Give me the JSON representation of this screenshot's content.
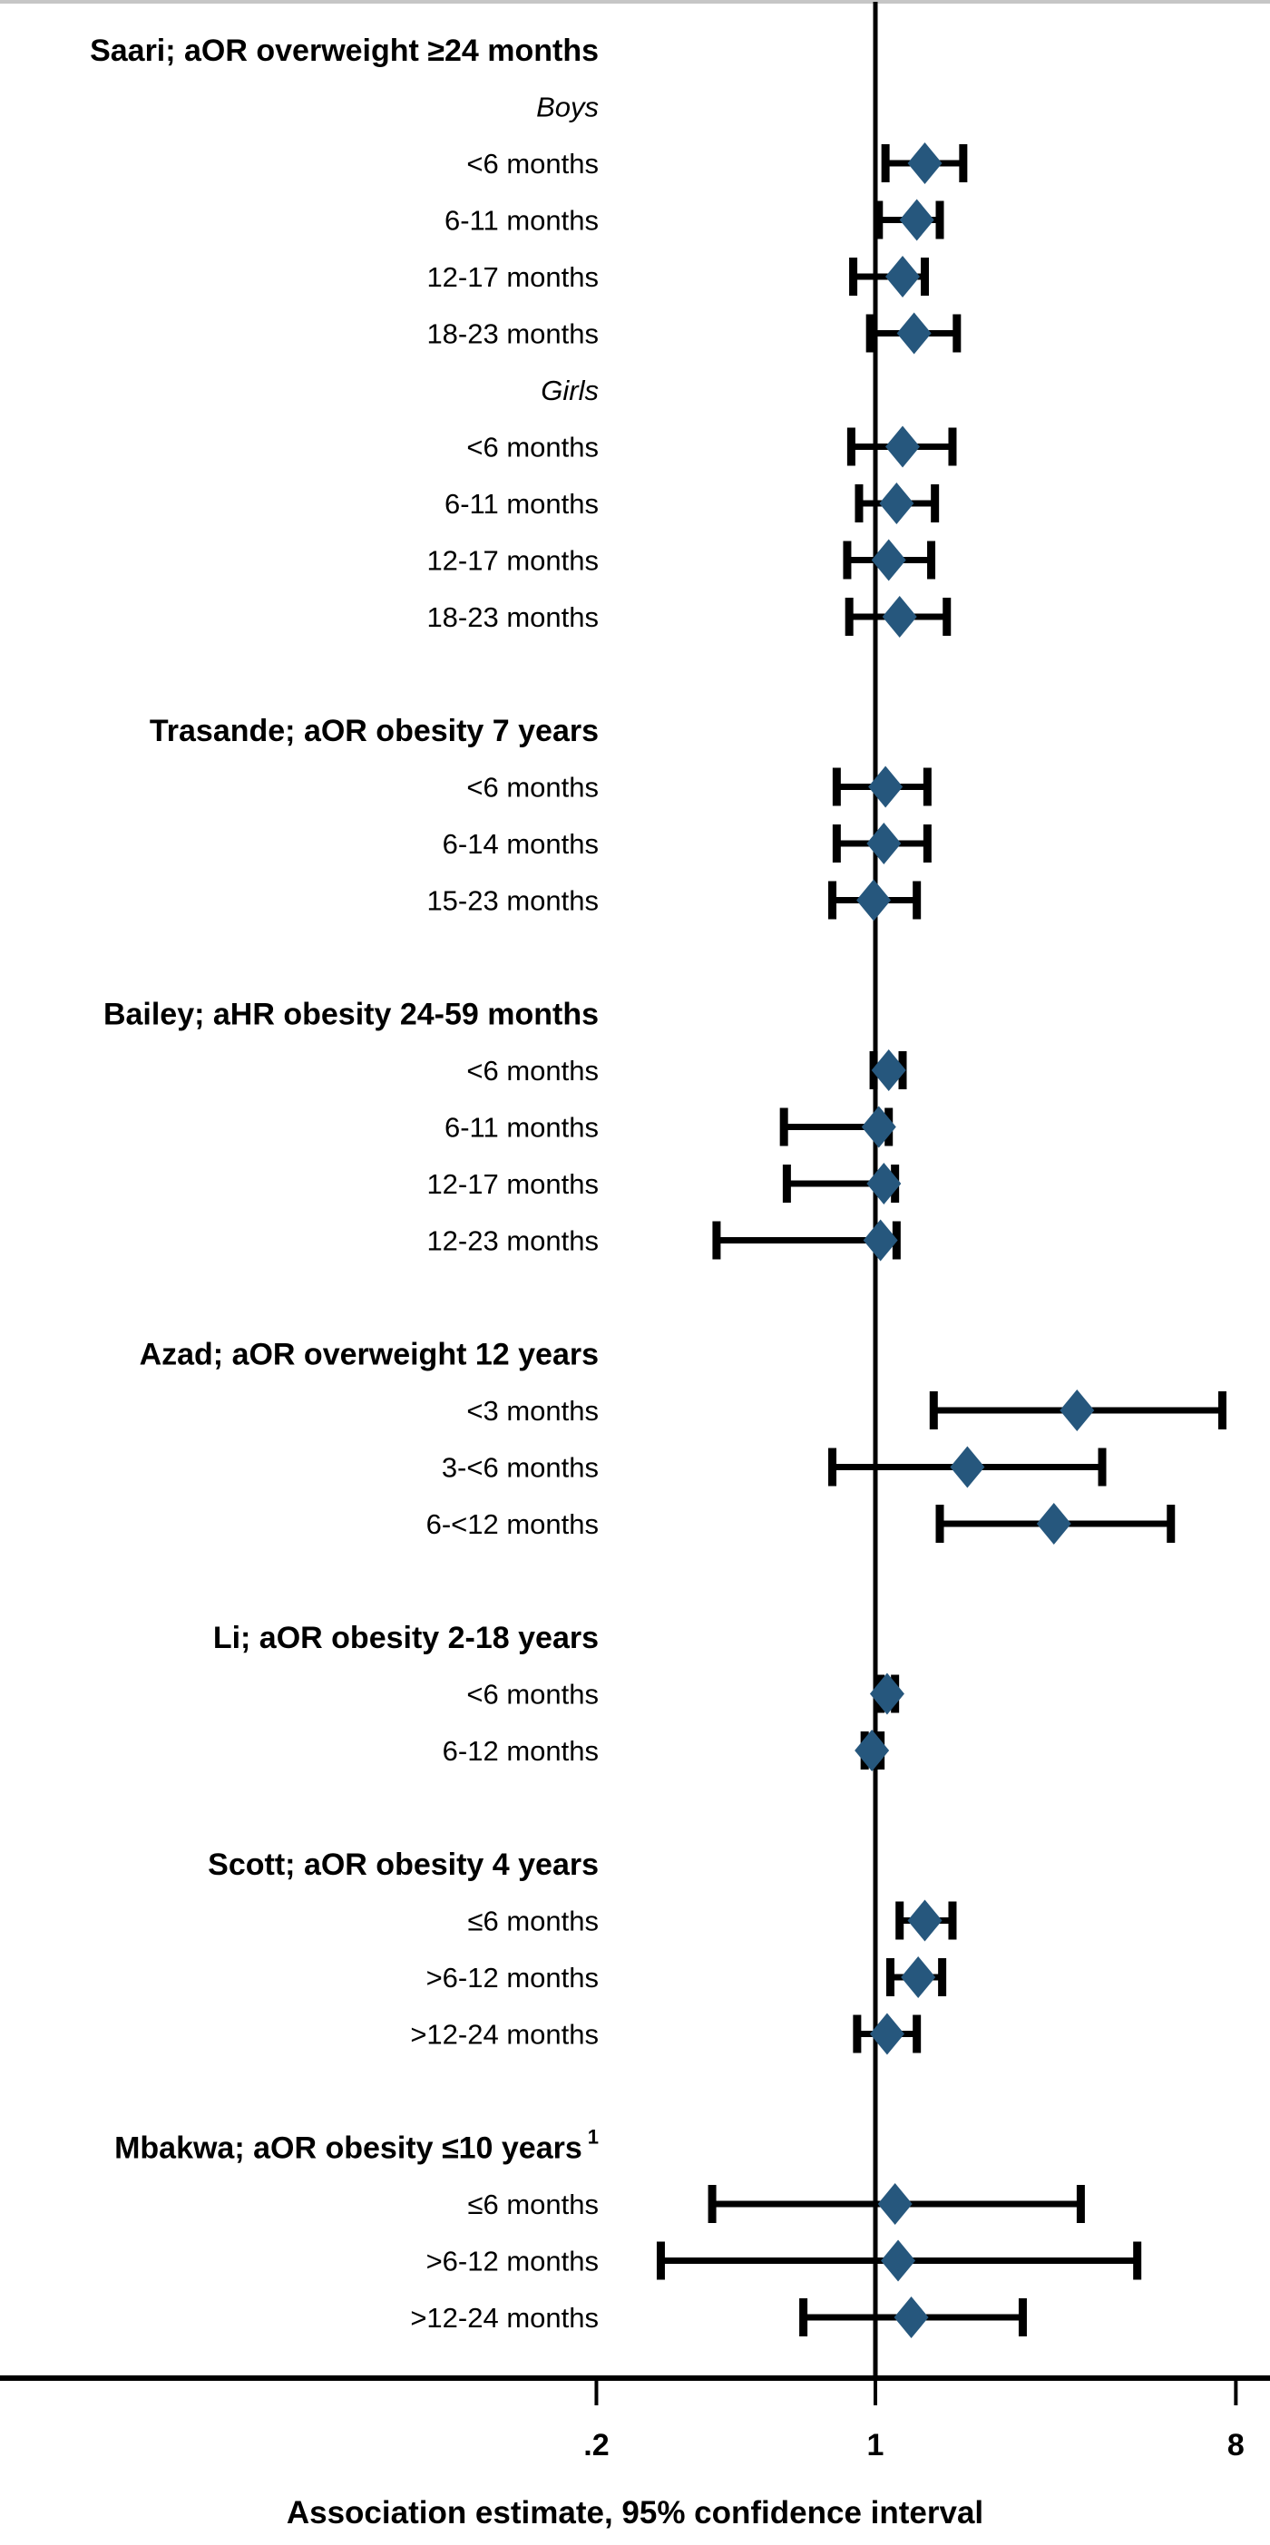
{
  "chart_data": {
    "type": "scatter",
    "subtype": "forest-plot",
    "title": "",
    "xlabel": "Association estimate, 95% confidence interval",
    "x_scale": "log",
    "x_axis": {
      "tick_values": [
        0.2,
        1,
        8
      ],
      "tick_labels": [
        ".2",
        "1",
        "8"
      ],
      "reference_line": 1,
      "xlim": [
        0.13,
        9.8
      ],
      "grid": false
    },
    "marker": "diamond",
    "marker_color": "#26577D",
    "ci_color": "#000000",
    "text_color": "#000000",
    "top_border_color": "#c6c6c6",
    "sections": [
      {
        "header": "Saari; aOR overweight ≥24 months",
        "rows": [
          {
            "subheader": "Boys"
          },
          {
            "label": "<6 months",
            "est": 1.33,
            "lo": 1.06,
            "hi": 1.66
          },
          {
            "label": "6-11 months",
            "est": 1.27,
            "lo": 1.02,
            "hi": 1.45
          },
          {
            "label": "12-17 months",
            "est": 1.17,
            "lo": 0.88,
            "hi": 1.33
          },
          {
            "label": "18-23 months",
            "est": 1.25,
            "lo": 0.97,
            "hi": 1.6
          },
          {
            "subheader": "Girls"
          },
          {
            "label": "<6 months",
            "est": 1.17,
            "lo": 0.87,
            "hi": 1.56
          },
          {
            "label": "6-11 months",
            "est": 1.13,
            "lo": 0.91,
            "hi": 1.41
          },
          {
            "label": "12-17 months",
            "est": 1.08,
            "lo": 0.85,
            "hi": 1.38
          },
          {
            "label": "18-23 months",
            "est": 1.15,
            "lo": 0.86,
            "hi": 1.51
          }
        ]
      },
      {
        "header": "Trasande; aOR obesity 7 years",
        "rows": [
          {
            "label": "<6 months",
            "est": 1.06,
            "lo": 0.8,
            "hi": 1.35
          },
          {
            "label": "6-14 months",
            "est": 1.05,
            "lo": 0.8,
            "hi": 1.35
          },
          {
            "label": "15-23 months",
            "est": 0.99,
            "lo": 0.78,
            "hi": 1.27
          }
        ]
      },
      {
        "header": "Bailey; aHR obesity 24-59 months",
        "rows": [
          {
            "label": "<6 months",
            "est": 1.08,
            "lo": 0.99,
            "hi": 1.17
          },
          {
            "label": "6-11 months",
            "est": 1.02,
            "lo": 0.59,
            "hi": 1.08
          },
          {
            "label": "12-17 months",
            "est": 1.05,
            "lo": 0.6,
            "hi": 1.12
          },
          {
            "label": "12-23 months",
            "est": 1.03,
            "lo": 0.4,
            "hi": 1.13
          }
        ]
      },
      {
        "header": "Azad; aOR overweight 12 years",
        "rows": [
          {
            "label": "<3 months",
            "est": 3.2,
            "lo": 1.4,
            "hi": 7.4
          },
          {
            "label": "3-<6 months",
            "est": 1.7,
            "lo": 0.78,
            "hi": 3.7
          },
          {
            "label": "6-<12 months",
            "est": 2.8,
            "lo": 1.45,
            "hi": 5.5
          }
        ]
      },
      {
        "header": "Li; aOR obesity 2-18 years",
        "rows": [
          {
            "label": "<6 months",
            "est": 1.07,
            "lo": 1.03,
            "hi": 1.12
          },
          {
            "label": "6-12 months",
            "est": 0.98,
            "lo": 0.94,
            "hi": 1.03
          }
        ]
      },
      {
        "header": "Scott; aOR obesity 4 years",
        "rows": [
          {
            "label": "≤6 months",
            "est": 1.33,
            "lo": 1.15,
            "hi": 1.56
          },
          {
            "label": ">6-12 months",
            "est": 1.28,
            "lo": 1.09,
            "hi": 1.47
          },
          {
            "label": ">12-24 months",
            "est": 1.07,
            "lo": 0.9,
            "hi": 1.27
          }
        ]
      },
      {
        "header": "Mbakwa; aOR obesity ≤10 years",
        "header_sup": "1",
        "rows": [
          {
            "label": "≤6 months",
            "est": 1.12,
            "lo": 0.39,
            "hi": 3.27
          },
          {
            "label": ">6-12 months",
            "est": 1.14,
            "lo": 0.29,
            "hi": 4.53
          },
          {
            "label": ">12-24 months",
            "est": 1.23,
            "lo": 0.66,
            "hi": 2.34
          }
        ]
      }
    ]
  }
}
